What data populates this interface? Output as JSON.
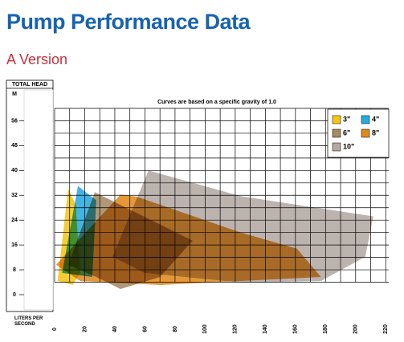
{
  "chart_data": {
    "type": "area",
    "title": "Pump Performance Data",
    "subtitle": "A Version",
    "y_label": "TOTAL HEAD",
    "y_unit": "M",
    "x_label": "LITERS PER SECOND",
    "note": "Curves are based on a specific gravity of 1.0",
    "xlim": [
      0,
      222
    ],
    "ylim": [
      0,
      60
    ],
    "xticks": [
      0,
      20,
      40,
      60,
      80,
      100,
      120,
      140,
      160,
      180,
      200,
      220
    ],
    "yticks": [
      0,
      8,
      16,
      24,
      32,
      40,
      48,
      56
    ],
    "grid": true,
    "legend": "top-right",
    "series": [
      {
        "name": "10\"",
        "color": "#b3a8a4",
        "x": [
          38.4,
          62.4,
          123.7,
          211.7,
          206.4,
          177,
          123.7,
          59.7
        ],
        "values": [
          12.2,
          40,
          31.7,
          25.2,
          12.2,
          4.4,
          3.9,
          7
        ]
      },
      {
        "name": "8\"",
        "color": "#e08a1e",
        "x": [
          1,
          43.7,
          54.4,
          123.7,
          161,
          177,
          123.7,
          70.4,
          17
        ],
        "values": [
          9.6,
          32.2,
          31.6,
          20,
          14.8,
          5.7,
          4.4,
          3.1,
          4.4
        ]
      },
      {
        "name": "6\"",
        "color": "#a48a65",
        "x": [
          9,
          26.7,
          91.7,
          70,
          43.7,
          27.7
        ],
        "values": [
          9.6,
          33,
          17.4,
          5.7,
          1.8,
          5.7
        ]
      },
      {
        "name": "4\"",
        "color": "#29a9e0",
        "x": [
          5,
          15.5,
          27.7,
          25
        ],
        "values": [
          7,
          35,
          30.4,
          5.7
        ]
      },
      {
        "name": "3\"",
        "color": "#f5c518",
        "x": [
          2,
          9,
          14,
          17,
          12
        ],
        "values": [
          4.4,
          34.2,
          29,
          7,
          3.1
        ]
      }
    ]
  }
}
